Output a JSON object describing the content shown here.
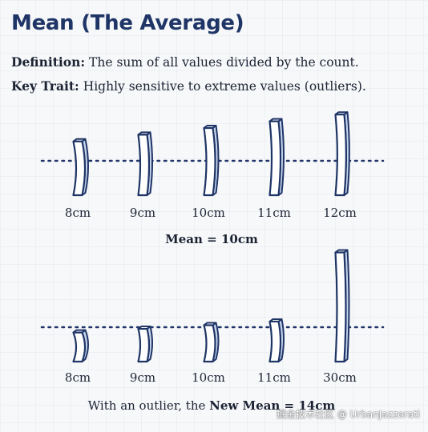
{
  "title": "Mean (The Average)",
  "definition": {
    "label": "Definition:",
    "text": " The sum of all values divided by the count."
  },
  "key_trait": {
    "label": "Key Trait:",
    "text": " Highly sensitive to extreme values (outliers)."
  },
  "colors": {
    "title": "#1f3566",
    "stick_outline": "#1f3566",
    "stick_face": "#ffffff",
    "stick_side": "#c9d6ee",
    "mean_line": "#1f3566"
  },
  "groups": [
    {
      "sticks": [
        {
          "value": 8,
          "label": "8cm"
        },
        {
          "value": 9,
          "label": "9cm"
        },
        {
          "value": 10,
          "label": "10cm"
        },
        {
          "value": 11,
          "label": "11cm"
        },
        {
          "value": 12,
          "label": "12cm"
        }
      ],
      "caption": {
        "before": "",
        "bold": "Mean = 10cm"
      }
    },
    {
      "sticks": [
        {
          "value": 8,
          "label": "8cm"
        },
        {
          "value": 9,
          "label": "9cm"
        },
        {
          "value": 10,
          "label": "10cm"
        },
        {
          "value": 11,
          "label": "11cm"
        },
        {
          "value": 30,
          "label": "30cm"
        }
      ],
      "caption": {
        "before": "With an outlier, the ",
        "bold": "New Mean = 14cm"
      }
    }
  ],
  "watermark": "掘金技术社区 @ UrbanJazzerati"
}
